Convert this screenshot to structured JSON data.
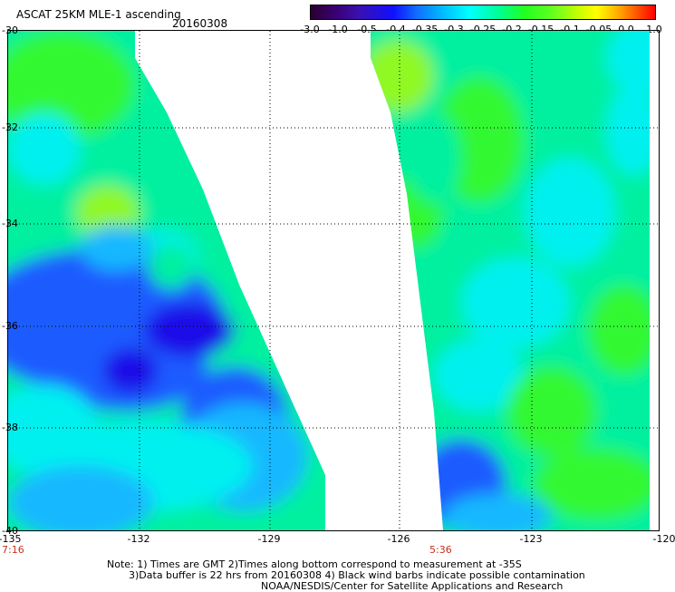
{
  "header": {
    "title": "ASCAT 25KM MLE-1 ascending",
    "date": "20160308"
  },
  "colorbar": {
    "labels": [
      "-3.0",
      "-1.0",
      "-0.5",
      "-0.4",
      "-0.35",
      "-0.3",
      "-0.25",
      "-0.2",
      "-0.15",
      "-0.1",
      "-0.05",
      "0.0",
      "1.0"
    ]
  },
  "map": {
    "lat_labels": [
      "-30",
      "-32",
      "-34",
      "-36",
      "-38",
      "-40"
    ],
    "lon_labels": [
      "-135",
      "-132",
      "-129",
      "-126",
      "-123",
      "-120"
    ],
    "time_labels": [
      "7:16",
      "5:36"
    ],
    "palette": {
      "deep_blue": "#1a10e8",
      "blue": "#1a5cff",
      "light_blue": "#14b8ff",
      "cyan": "#00f0f0",
      "green_cyan": "#00f0a0",
      "green": "#30f830",
      "lime": "#90f820"
    }
  },
  "footer": {
    "note1": "Note: 1) Times are GMT 2)Times along bottom correspond to measurement at -35S",
    "note2": "3)Data buffer is 22 hrs from 20160308 4) Black wind barbs indicate possible contamination",
    "credit": "NOAA/NESDIS/Center for Satellite Applications and Research"
  }
}
